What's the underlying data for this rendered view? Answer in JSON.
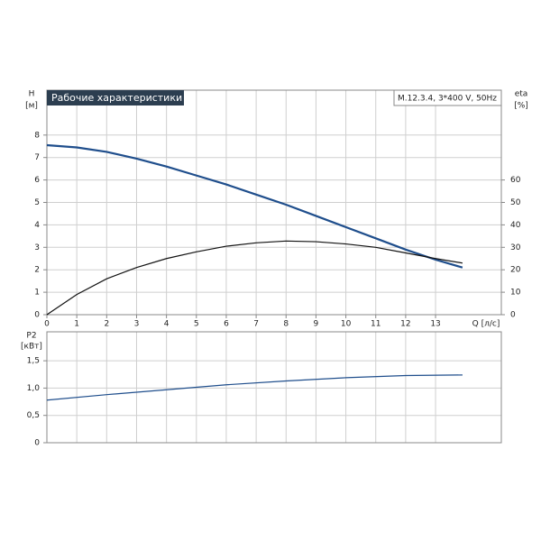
{
  "chart_data": [
    {
      "type": "line",
      "title": "Рабочие характеристики",
      "annotation": "M.12.3.4, 3*400 V, 50Hz",
      "ylabel": "H",
      "yunit": "[м]",
      "y2label": "eta",
      "y2unit": "[%]",
      "xlabel": "Q [л/с]",
      "x": [
        0,
        1,
        2,
        3,
        4,
        5,
        6,
        7,
        8,
        9,
        10,
        11,
        12,
        13,
        13.9
      ],
      "xlim": [
        0,
        15.2
      ],
      "xticks": [
        0,
        1,
        2,
        3,
        4,
        5,
        6,
        7,
        8,
        9,
        10,
        11,
        12,
        13
      ],
      "ylim": [
        0,
        10
      ],
      "yticks": [
        0,
        1,
        2,
        3,
        4,
        5,
        6,
        7,
        8
      ],
      "y2lim": [
        0,
        100
      ],
      "y2ticks": [
        0,
        10,
        20,
        30,
        40,
        50,
        60
      ],
      "grid": true,
      "series": [
        {
          "color": "#1f4e8c",
          "values": [
            7.55,
            7.45,
            7.25,
            6.95,
            6.6,
            6.2,
            5.8,
            5.35,
            4.9,
            4.4,
            3.9,
            3.4,
            2.9,
            2.45,
            2.1
          ]
        },
        {
          "color": "#111111",
          "axis": "y2",
          "values": [
            0,
            9,
            16,
            21,
            25,
            28,
            30.5,
            32,
            32.8,
            32.5,
            31.5,
            30,
            27.5,
            25,
            23
          ]
        }
      ]
    },
    {
      "type": "line",
      "ylabel": "P2",
      "yunit": "[кВт]",
      "x": [
        0,
        2,
        4,
        6,
        8,
        10,
        12,
        13.9
      ],
      "xlim": [
        0,
        15.2
      ],
      "ylim": [
        0,
        2.03
      ],
      "yticks": [
        0,
        {
          "value": 0.5,
          "label": "0,5"
        },
        {
          "value": 1.0,
          "label": "1,0"
        },
        {
          "value": 1.5,
          "label": "1,5"
        }
      ],
      "grid": true,
      "series": [
        {
          "color": "#1f4e8c",
          "values": [
            0.78,
            0.88,
            0.97,
            1.06,
            1.13,
            1.19,
            1.23,
            1.24
          ]
        }
      ]
    }
  ]
}
